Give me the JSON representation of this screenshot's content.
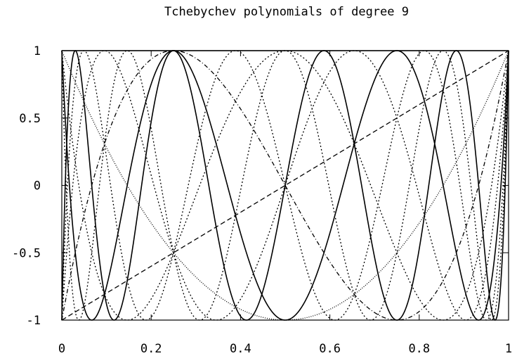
{
  "chart_data": {
    "type": "line",
    "title": "Tchebychev polynomials of degree 9",
    "xlabel": "",
    "ylabel": "",
    "xlim": [
      0,
      1
    ],
    "ylim": [
      -1,
      1
    ],
    "x_ticks": [
      "0",
      "0.2",
      "0.4",
      "0.6",
      "0.8",
      "1"
    ],
    "y_ticks": [
      "1",
      "0.5",
      "0",
      "-0.5",
      "-1"
    ],
    "x_tick_values": [
      0,
      0.2,
      0.4,
      0.6,
      0.8,
      1
    ],
    "y_tick_values": [
      1,
      0.5,
      0,
      -0.5,
      -1
    ],
    "grid": false,
    "legend": "none",
    "domain_mapping": "T_n(2x - 1) for x in [0, 1]",
    "series": [
      {
        "degree": 0,
        "line_style": "solid"
      },
      {
        "degree": 1,
        "line_style": "dashed"
      },
      {
        "degree": 2,
        "line_style": "dotted-fine"
      },
      {
        "degree": 3,
        "line_style": "dashdot"
      },
      {
        "degree": 4,
        "line_style": "dotted"
      },
      {
        "degree": 5,
        "line_style": "dotted"
      },
      {
        "degree": 6,
        "line_style": "solid"
      },
      {
        "degree": 7,
        "line_style": "dotted"
      },
      {
        "degree": 8,
        "line_style": "dotted"
      },
      {
        "degree": 9,
        "line_style": "solid"
      }
    ],
    "line_color": "#000000"
  }
}
